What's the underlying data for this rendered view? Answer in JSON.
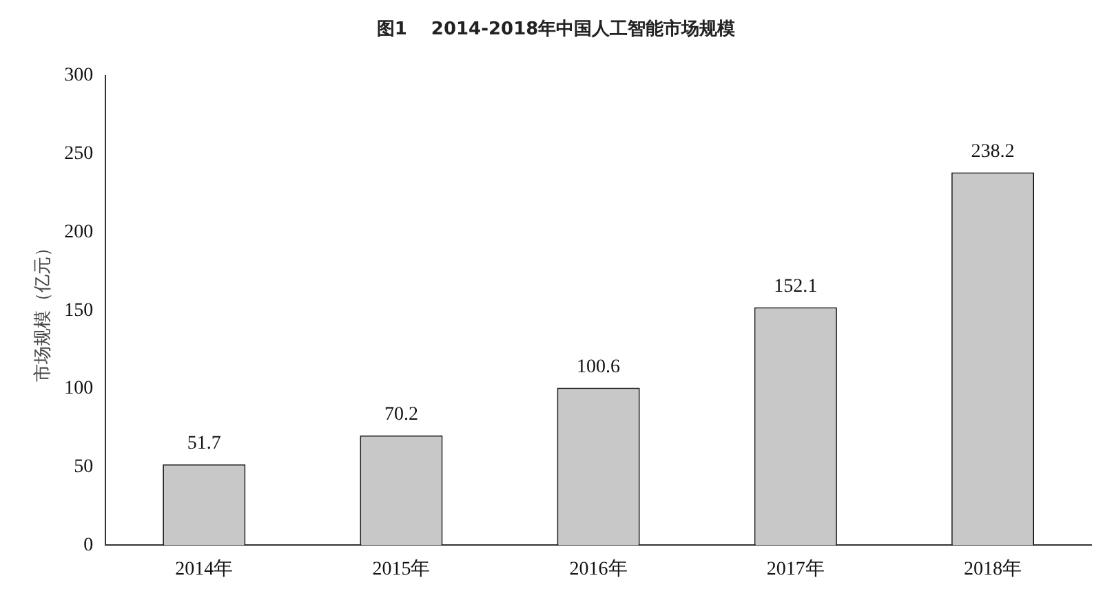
{
  "chart_data": {
    "type": "bar",
    "title": "图1　 2014-2018年中国人工智能市场规模",
    "ylabel": "市场规模（亿元）",
    "categories": [
      "2014年",
      "2015年",
      "2016年",
      "2017年",
      "2018年"
    ],
    "values": [
      51.7,
      70.2,
      100.6,
      152.1,
      238.2
    ],
    "color": "#c8c8c8",
    "ylim": [
      0,
      300
    ],
    "yticks": [
      0,
      50,
      100,
      150,
      200,
      250,
      300
    ],
    "grid": false,
    "legend": false,
    "data_labels": true
  }
}
